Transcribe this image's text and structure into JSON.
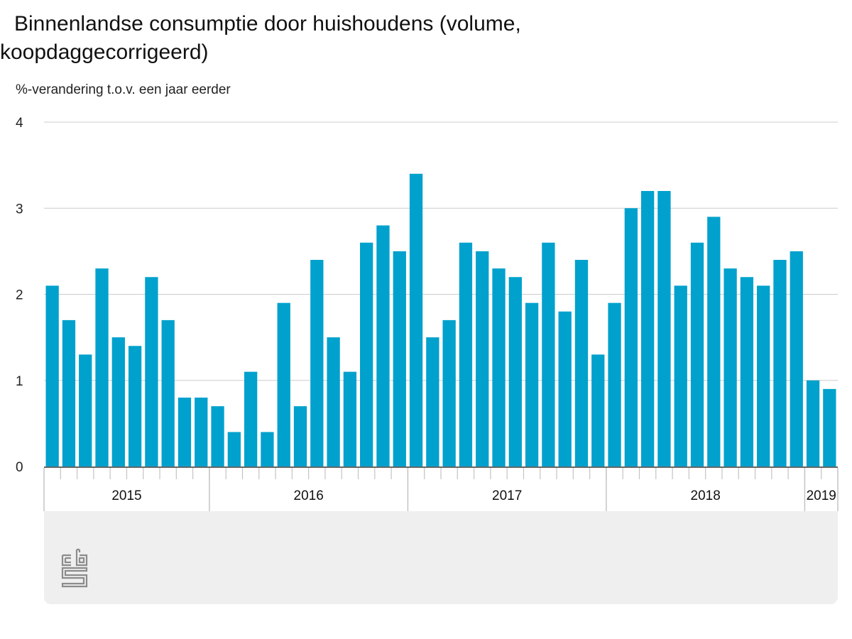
{
  "title": "Binnenlandse consumptie door huishoudens (volume, koopdaggecorrigeerd)",
  "subtitle": "%-verandering t.o.v. een jaar eerder",
  "logo": "cbs-logo-icon",
  "colors": {
    "bar": "#00a1cd",
    "grid": "#cccccc",
    "axis_panel": "#efefef",
    "axis_line": "#666666",
    "tick": "#c4c4c4"
  },
  "chart_data": {
    "type": "bar",
    "title": "Binnenlandse consumptie door huishoudens (volume, koopdaggecorrigeerd)",
    "ylabel": "%-verandering t.o.v. een jaar eerder",
    "xlabel": "",
    "ylim": [
      0,
      4
    ],
    "yticks": [
      0,
      1,
      2,
      3,
      4
    ],
    "grid": true,
    "legend": "none",
    "year_groups": [
      {
        "label": "2015",
        "count": 10
      },
      {
        "label": "2016",
        "count": 12
      },
      {
        "label": "2017",
        "count": 12
      },
      {
        "label": "2018",
        "count": 12
      },
      {
        "label": "2019",
        "count": 2
      }
    ],
    "values": [
      2.1,
      1.7,
      1.3,
      2.3,
      1.5,
      1.4,
      2.2,
      1.7,
      0.8,
      0.8,
      0.7,
      0.4,
      1.1,
      0.4,
      1.9,
      0.7,
      2.4,
      1.5,
      1.1,
      2.6,
      2.8,
      2.5,
      3.4,
      1.5,
      1.7,
      2.6,
      2.5,
      2.3,
      2.2,
      1.9,
      2.6,
      1.8,
      2.4,
      1.3,
      1.9,
      3.0,
      3.2,
      3.2,
      2.1,
      2.6,
      2.9,
      2.3,
      2.2,
      2.1,
      2.4,
      2.5,
      1.0,
      0.9
    ]
  }
}
